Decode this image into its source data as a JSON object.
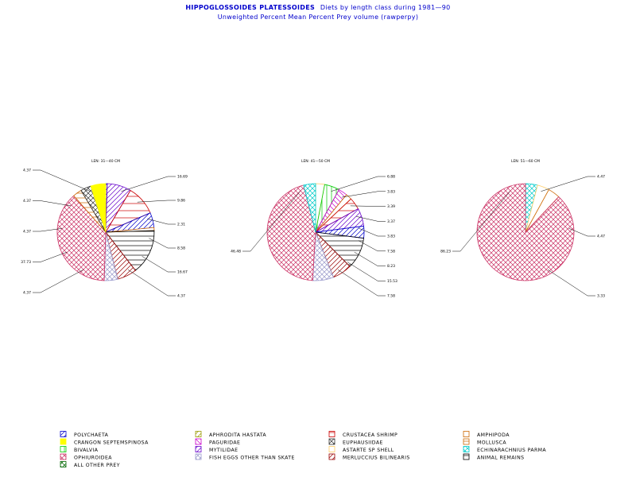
{
  "chart_data": {
    "type": "pie",
    "title": {
      "species": "HIPPOGLOSSOIDES PLATESSOIDES",
      "rest": "Diets by length class during 1981—90",
      "subtitle": "Unweighted Percent Mean Percent Prey  volume (rawperpy)"
    },
    "legend": {
      "placement": "bottom",
      "items": [
        {
          "key": "polychaeta",
          "label": "POLYCHAETA",
          "color": "#0000cc",
          "pattern": "bl-tr-diag"
        },
        {
          "key": "aphrodita",
          "label": "APHRODITA HASTATA",
          "color": "#999900",
          "pattern": "bl-tr-diag"
        },
        {
          "key": "crustacea_shrimp",
          "label": "CRUSTACEA SHRIMP",
          "color": "#cc0000",
          "pattern": "horiz-wide"
        },
        {
          "key": "amphipoda",
          "label": "AMPHIPODA",
          "color": "#cc6600",
          "pattern": "outline"
        },
        {
          "key": "crangon",
          "label": "CRANGON SEPTEMSPINOSA",
          "color": "#ffff00",
          "pattern": "solid"
        },
        {
          "key": "paguridae",
          "label": "PAGURIDAE",
          "color": "#cc00cc",
          "pattern": "tl-br-diag"
        },
        {
          "key": "euphausiidae",
          "label": "EUPHAUSIIDAE",
          "color": "#333333",
          "pattern": "cross-diag"
        },
        {
          "key": "mollusca",
          "label": "MOLLUSCA",
          "color": "#cc6600",
          "pattern": "horiz"
        },
        {
          "key": "bivalvia",
          "label": "BIVALVIA",
          "color": "#00cc00",
          "pattern": "vert"
        },
        {
          "key": "mytilidae",
          "label": "MYTILIDAE",
          "color": "#6600cc",
          "pattern": "bl-tr-diag"
        },
        {
          "key": "astarte",
          "label": "ASTARTE SP SHELL",
          "color": "#ffcc66",
          "pattern": "outline"
        },
        {
          "key": "echinarachnius",
          "label": "ECHINARACHNIUS PARMA",
          "color": "#00cccc",
          "pattern": "cross-diag"
        },
        {
          "key": "ophiuroidea",
          "label": "OPHIUROIDEA",
          "color": "#cc3366",
          "pattern": "cross-diag"
        },
        {
          "key": "fish_eggs",
          "label": "FISH EGGS OTHER THAN SKATE",
          "color": "#9999cc",
          "pattern": "cross-diag"
        },
        {
          "key": "merluccius",
          "label": "MERLUCCIUS BILINEARIS",
          "color": "#990000",
          "pattern": "bl-tr-diag"
        },
        {
          "key": "animal_remains",
          "label": "ANIMAL REMAINS",
          "color": "#000000",
          "pattern": "horiz"
        },
        {
          "key": "all_other_prey",
          "label": "ALL OTHER PREY",
          "color": "#006600",
          "pattern": "cross-x"
        }
      ]
    },
    "pies": [
      {
        "header": "LEN: 31—40 CM",
        "slices": [
          {
            "key": "polychaeta",
            "value": 0.5
          },
          {
            "key": "mytilidae",
            "value": 8.0
          },
          {
            "key": "crustacea_shrimp",
            "value": 10.0
          },
          {
            "key": "polychaeta",
            "value": 5.0
          },
          {
            "key": "amphipoda",
            "value": 1.0
          },
          {
            "key": "animal_remains",
            "value": 15.0
          },
          {
            "key": "merluccius",
            "value": 6.5
          },
          {
            "key": "fish_eggs",
            "value": 4.5
          },
          {
            "key": "ophiuroidea",
            "value": 38.0
          },
          {
            "key": "mollusca",
            "value": 3.0
          },
          {
            "key": "euphausiidae",
            "value": 3.5
          },
          {
            "key": "crangon",
            "value": 5.0
          }
        ],
        "labels_right": [
          "16.69",
          "9.86",
          "2.31",
          "8.58",
          "16.67",
          "4.37"
        ],
        "labels_left": [
          "4.37",
          "4.37",
          "4.37",
          "37.73",
          "4.37"
        ]
      },
      {
        "header": "LEN: 41—50 CM",
        "slices": [
          {
            "key": "astarte",
            "value": 3.0
          },
          {
            "key": "bivalvia",
            "value": 5.0
          },
          {
            "key": "paguridae",
            "value": 3.0
          },
          {
            "key": "amphipoda",
            "value": 2.0
          },
          {
            "key": "crustacea_shrimp",
            "value": 4.0
          },
          {
            "key": "mytilidae",
            "value": 6.0
          },
          {
            "key": "polychaeta",
            "value": 4.0
          },
          {
            "key": "animal_remains",
            "value": 10.5
          },
          {
            "key": "merluccius",
            "value": 6.5
          },
          {
            "key": "fish_eggs",
            "value": 7.0
          },
          {
            "key": "ophiuroidea",
            "value": 45.0
          },
          {
            "key": "echinarachnius",
            "value": 4.0
          }
        ],
        "labels_right": [
          "6.88",
          "3.83",
          "3.39",
          "3.37",
          "3.83",
          "7.58",
          "8.23",
          "15.53",
          "7.58"
        ],
        "labels_left": [
          "46.48"
        ]
      },
      {
        "header": "LEN: 51—60 CM",
        "slices": [
          {
            "key": "echinarachnius",
            "value": 4.0
          },
          {
            "key": "astarte",
            "value": 4.0
          },
          {
            "key": "amphipoda",
            "value": 4.0
          },
          {
            "key": "ophiuroidea",
            "value": 88.0
          }
        ],
        "labels_right": [
          "4.47",
          "4.47",
          "3.33"
        ],
        "labels_left": [
          "86.23"
        ]
      }
    ]
  }
}
